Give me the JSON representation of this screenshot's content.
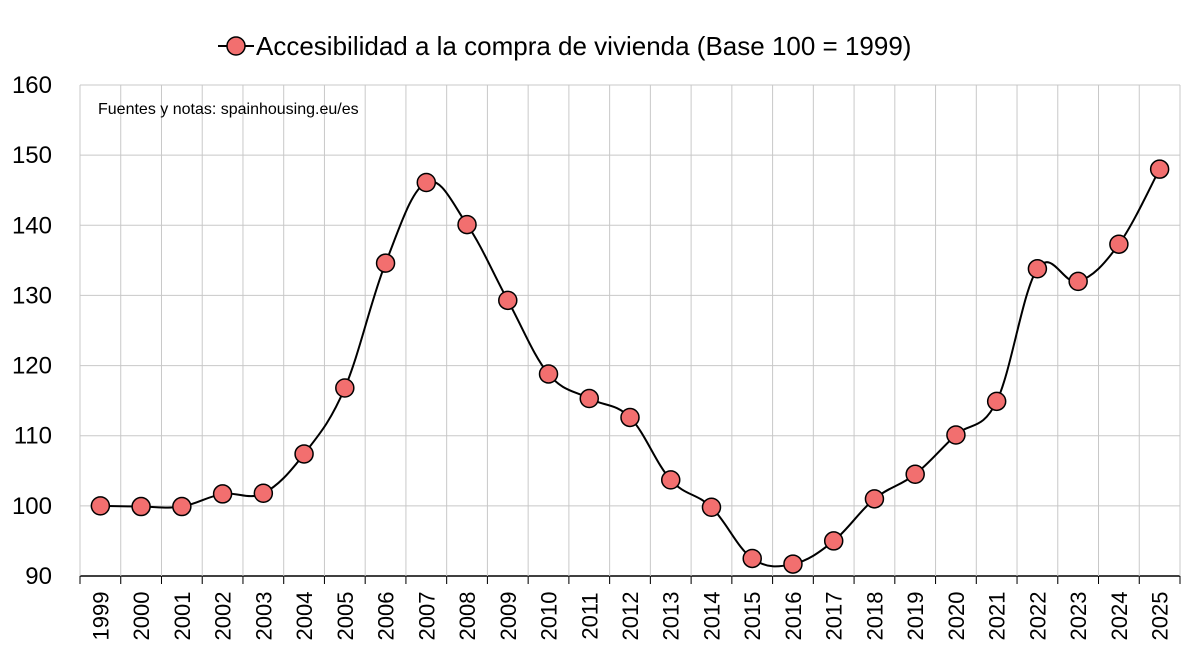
{
  "chart_data": {
    "type": "line",
    "title": "",
    "xlabel": "",
    "ylabel": "",
    "legend_position": "top",
    "note": "Fuentes y notas: spainhousing.eu/es",
    "ylim": [
      90,
      160
    ],
    "yticks": [
      90,
      100,
      110,
      120,
      130,
      140,
      150,
      160
    ],
    "grid": true,
    "categories": [
      "1999",
      "2000",
      "2001",
      "2002",
      "2003",
      "2004",
      "2005",
      "2006",
      "2007",
      "2008",
      "2009",
      "2010",
      "2011",
      "2012",
      "2013",
      "2014",
      "2015",
      "2016",
      "2017",
      "2018",
      "2019",
      "2020",
      "2021",
      "2022",
      "2023",
      "2024",
      "2025"
    ],
    "series": [
      {
        "name": "Accesibilidad a la compra de vivienda (Base 100 = 1999)",
        "values": [
          100,
          99.9,
          99.9,
          101.7,
          101.8,
          107.4,
          116.8,
          134.6,
          146.1,
          140.1,
          129.3,
          118.8,
          115.3,
          112.6,
          103.7,
          99.8,
          92.5,
          91.7,
          95.0,
          101.0,
          104.5,
          110.1,
          114.9,
          133.8,
          132.0,
          137.3,
          148.0
        ],
        "marker_color": "#f26f6f",
        "line_color": "#000000"
      }
    ]
  }
}
